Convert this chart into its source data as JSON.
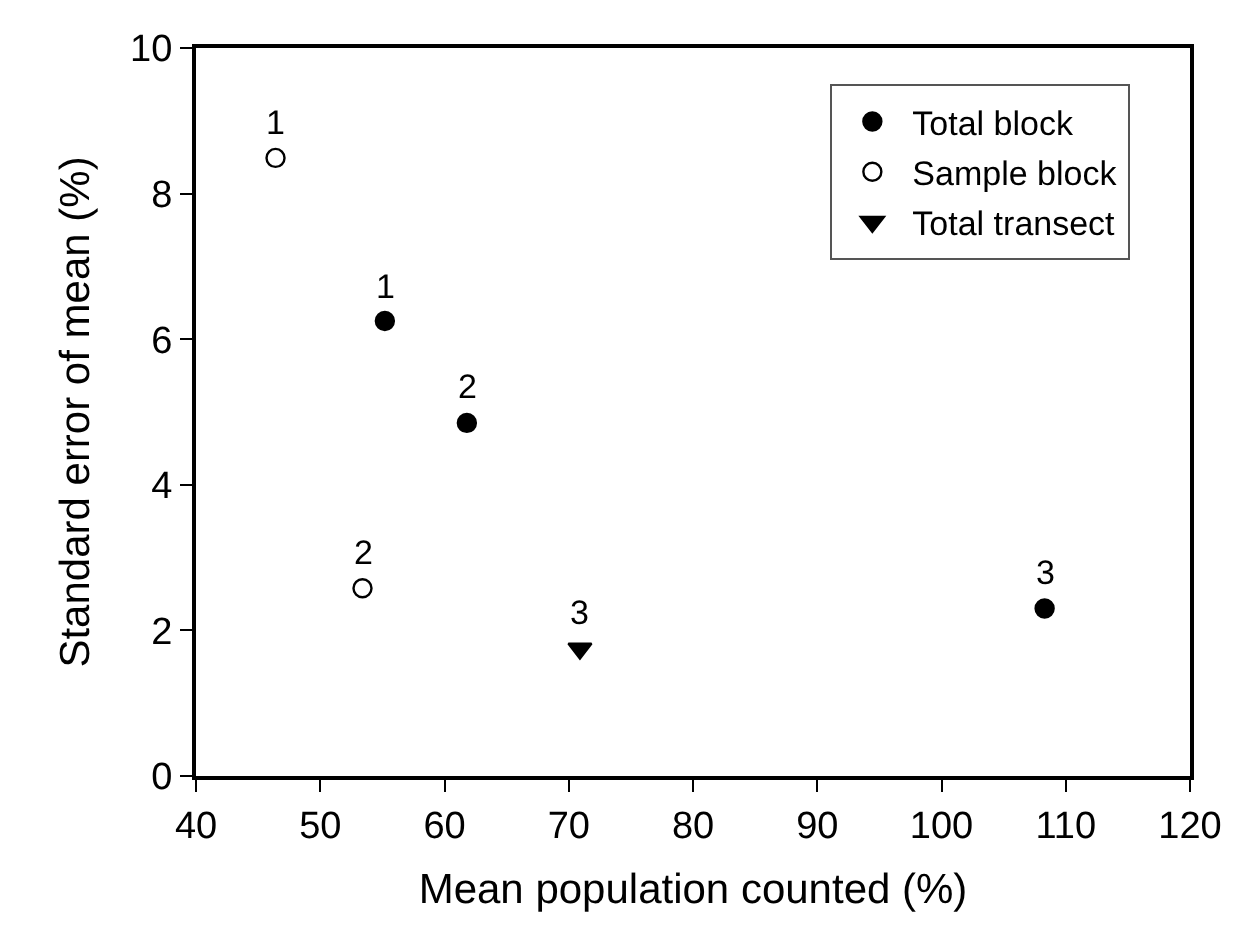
{
  "chart_data": {
    "type": "scatter",
    "xlabel": "Mean population counted (%)",
    "ylabel": "Standard error of mean (%)",
    "xlim": [
      40,
      120
    ],
    "xticks": [
      40,
      50,
      60,
      70,
      80,
      90,
      100,
      110,
      120
    ],
    "ylim": [
      0,
      10
    ],
    "yticks": [
      0,
      2,
      4,
      6,
      8,
      10
    ],
    "grid": false,
    "legend": "top right",
    "series": [
      {
        "name": "Total block",
        "color": "#000000",
        "marker": "circle",
        "x": [
          55.2,
          61.8,
          108.3
        ],
        "values": [
          6.25,
          4.85,
          2.3
        ]
      },
      {
        "name": "Sample block",
        "color": "#000000",
        "marker": "circle-open",
        "x": [
          46.4,
          53.4
        ],
        "values": [
          8.49,
          2.58
        ]
      },
      {
        "name": "Total transect",
        "color": "#000000",
        "marker": "triangle-down",
        "x": [
          70.9
        ],
        "values": [
          1.75
        ]
      }
    ],
    "annotations": [
      {
        "text": "1",
        "x": 55.2,
        "y": 6.25
      },
      {
        "text": "2",
        "x": 61.8,
        "y": 4.85
      },
      {
        "text": "3",
        "x": 108.3,
        "y": 2.3
      },
      {
        "text": "1",
        "x": 46.4,
        "y": 8.49
      },
      {
        "text": "2",
        "x": 53.4,
        "y": 2.58
      },
      {
        "text": "3",
        "x": 70.9,
        "y": 1.75
      }
    ]
  }
}
